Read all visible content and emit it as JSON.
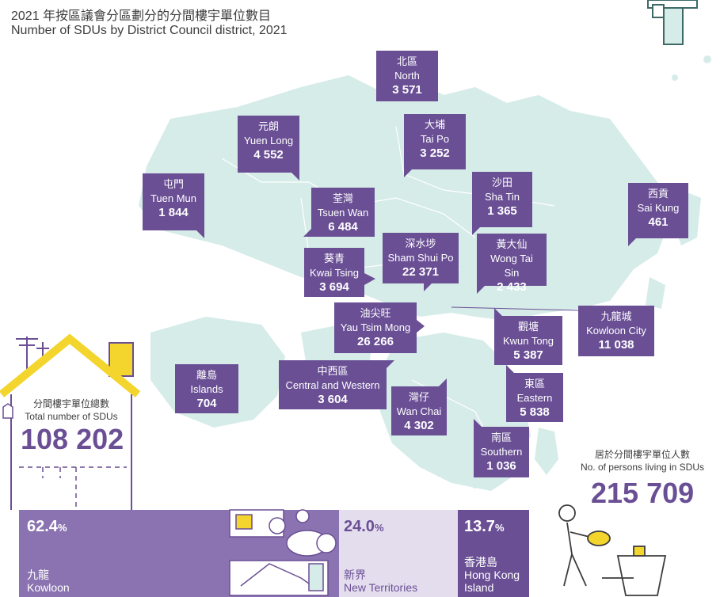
{
  "title_zh": "2021 年按區議會分區劃分的分間樓宇單位數目",
  "title_en": "Number of SDUs by District Council district, 2021",
  "chart_data": {
    "type": "map",
    "unit": "SDUs",
    "districts": [
      {
        "zh": "北區",
        "en": "North",
        "value": "3 571"
      },
      {
        "zh": "元朗",
        "en": "Yuen Long",
        "value": "4 552"
      },
      {
        "zh": "大埔",
        "en": "Tai Po",
        "value": "3 252"
      },
      {
        "zh": "屯門",
        "en": "Tuen Mun",
        "value": "1 844"
      },
      {
        "zh": "沙田",
        "en": "Sha Tin",
        "value": "1 365"
      },
      {
        "zh": "西貢",
        "en": "Sai Kung",
        "value": "461"
      },
      {
        "zh": "荃灣",
        "en": "Tsuen Wan",
        "value": "6 484"
      },
      {
        "zh": "深水埗",
        "en": "Sham Shui Po",
        "value": "22 371"
      },
      {
        "zh": "黃大仙",
        "en": "Wong Tai Sin",
        "value": "2 433"
      },
      {
        "zh": "葵青",
        "en": "Kwai Tsing",
        "value": "3 694"
      },
      {
        "zh": "油尖旺",
        "en": "Yau Tsim Mong",
        "value": "26 266"
      },
      {
        "zh": "九龍城",
        "en": "Kowloon City",
        "value": "11 038"
      },
      {
        "zh": "觀塘",
        "en": "Kwun Tong",
        "value": "5 387"
      },
      {
        "zh": "離島",
        "en": "Islands",
        "value": "704"
      },
      {
        "zh": "中西區",
        "en": "Central and Western",
        "value": "3 604"
      },
      {
        "zh": "東區",
        "en": "Eastern",
        "value": "5 838"
      },
      {
        "zh": "灣仔",
        "en": "Wan Chai",
        "value": "4 302"
      },
      {
        "zh": "南區",
        "en": "Southern",
        "value": "1 036"
      }
    ],
    "total_sdus": {
      "label_zh": "分間樓宇單位總數",
      "label_en": "Total number of SDUs",
      "value": "108 202"
    },
    "persons": {
      "label_zh": "居於分間樓宇單位人數",
      "label_en": "No. of persons living in SDUs",
      "value": "215 709"
    },
    "region_share": [
      {
        "zh": "九龍",
        "en": "Kowloon",
        "pct": 62.4,
        "color": "#8a73b0",
        "text_color": "#ffffff"
      },
      {
        "zh": "新界",
        "en": "New Territories",
        "pct": 24.0,
        "color": "#e4ddee",
        "text_color": "#6a4f95"
      },
      {
        "zh": "香港島",
        "en": "Hong Kong Island",
        "pct": 13.7,
        "color": "#6a4f95",
        "text_color": "#ffffff"
      }
    ],
    "colors": {
      "box": "#6a4f95",
      "land": "#d6ece8",
      "roof": "#f3d52d"
    }
  }
}
